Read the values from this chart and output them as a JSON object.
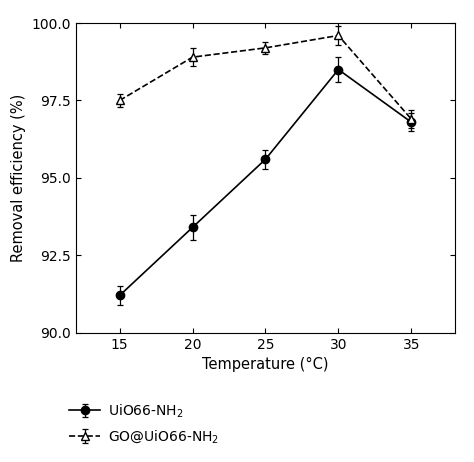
{
  "x": [
    15,
    20,
    25,
    30,
    35
  ],
  "series1_y": [
    91.2,
    93.4,
    95.6,
    98.5,
    96.8
  ],
  "series1_yerr": [
    0.3,
    0.4,
    0.3,
    0.4,
    0.3
  ],
  "series1_label": "UiO66-NH$_2$",
  "series1_color": "black",
  "series1_linestyle": "-",
  "series1_marker": "o",
  "series1_markerfacecolor": "black",
  "series2_y": [
    97.5,
    98.9,
    99.2,
    99.6,
    96.9
  ],
  "series2_yerr": [
    0.2,
    0.3,
    0.2,
    0.3,
    0.3
  ],
  "series2_label": "GO@UiO66-NH$_2$",
  "series2_color": "black",
  "series2_linestyle": "--",
  "series2_marker": "^",
  "series2_markerfacecolor": "white",
  "xlabel": "Temperature (°C)",
  "ylabel": "Removal efficiency (%)",
  "ylim": [
    90.0,
    100.0
  ],
  "xlim": [
    12,
    38
  ],
  "yticks": [
    90.0,
    92.5,
    95.0,
    97.5,
    100.0
  ],
  "xticks": [
    15,
    20,
    25,
    30,
    35
  ],
  "background_color": "#ffffff"
}
